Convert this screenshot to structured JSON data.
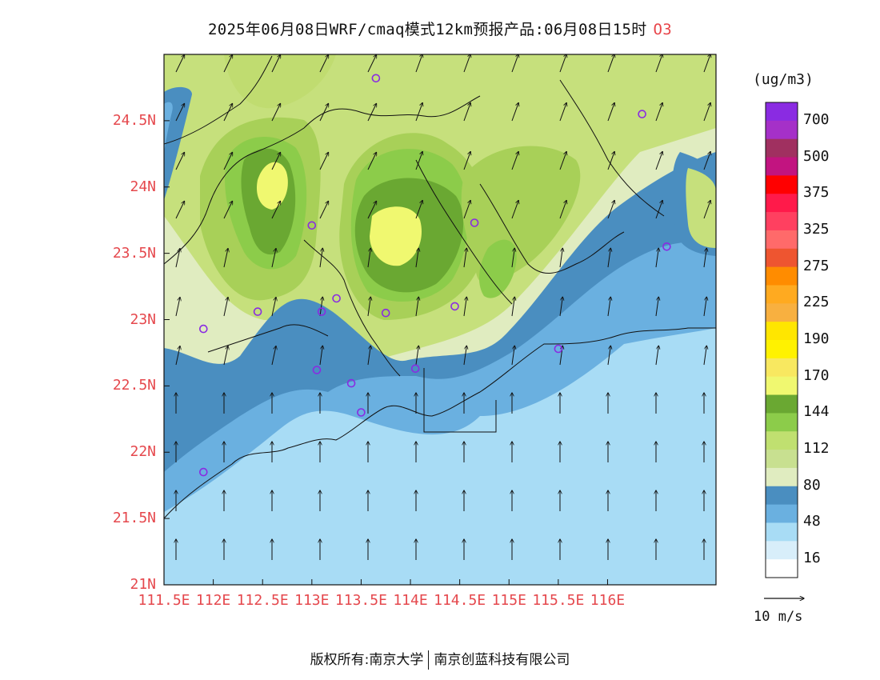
{
  "title": {
    "main": "2025年06月08日WRF/cmaq模式12km预报产品:06月08日15时",
    "species": "O3"
  },
  "map": {
    "lon_ticks": [
      "111.5E",
      "112E",
      "112.5E",
      "113E",
      "113.5E",
      "114E",
      "114.5E",
      "115E",
      "115.5E",
      "116E"
    ],
    "lat_ticks": [
      "24.5N",
      "24N",
      "23.5N",
      "23N",
      "22.5N",
      "22N",
      "21.5N",
      "21N"
    ],
    "lon_values": [
      111.5,
      112,
      112.5,
      113,
      113.5,
      114,
      114.5,
      115,
      115.5,
      116
    ],
    "lat_values": [
      24.5,
      24,
      23.5,
      23,
      22.5,
      22,
      21.5,
      21
    ],
    "lon_range": [
      111.5,
      117.1
    ],
    "lat_range": [
      21,
      25.0
    ],
    "field": "O3 concentration",
    "wind_direction": "predominantly southerly, turning southwesterly in the northwest",
    "monitoring_stations": 18
  },
  "colorbar": {
    "unit": "(ug/m3)",
    "labels": [
      "700",
      "500",
      "375",
      "325",
      "275",
      "225",
      "190",
      "170",
      "144",
      "112",
      "80",
      "48",
      "16"
    ],
    "colors_top_to_bottom": [
      "#8a2be2",
      "#a530c8",
      "#a03060",
      "#c21480",
      "#ff0000",
      "#ff1a4a",
      "#ff4060",
      "#ff6a6a",
      "#ee5530",
      "#ff8c00",
      "#ffaa20",
      "#f8b040",
      "#ffe600",
      "#fff200",
      "#f8e860",
      "#f0f870",
      "#6aa832",
      "#8ccc4a",
      "#c0e070",
      "#c8e090",
      "#e0ecc0",
      "#4a8ec0",
      "#6ab0e0",
      "#a8dcf5",
      "#d8eefa",
      "#ffffff"
    ]
  },
  "wind_reference": {
    "label": "10 m/s"
  },
  "footer": {
    "copyright": "版权所有:南京大学",
    "company": "南京创蓝科技有限公司"
  }
}
